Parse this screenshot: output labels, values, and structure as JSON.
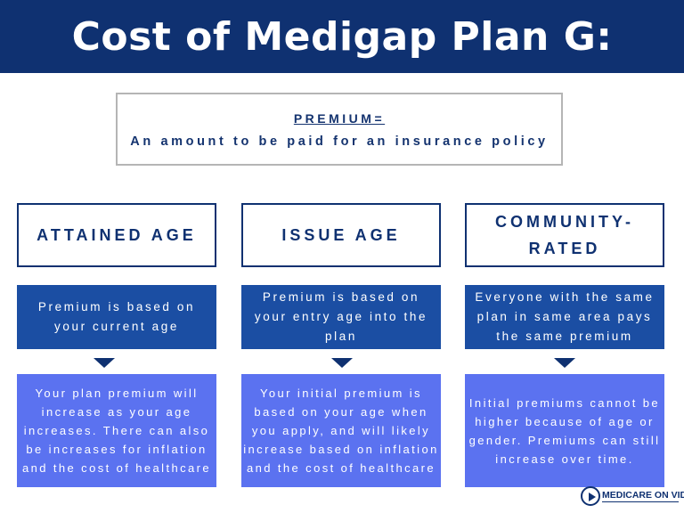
{
  "title": "Cost of Medigap Plan G:",
  "definition": {
    "term": "PREMIUM=",
    "text": "An amount to be paid for an insurance policy"
  },
  "columns": [
    {
      "title": "ATTAINED AGE",
      "summary": "Premium is based on your current age",
      "detail": "Your plan premium will increase as your age increases. There can also be increases for inflation and the cost of healthcare"
    },
    {
      "title": "ISSUE AGE",
      "summary": "Premium is based on your entry age into the plan",
      "detail": "Your initial premium is based on your age when you apply, and will likely increase based on inflation and the cost of healthcare"
    },
    {
      "title": "COMMUNITY-RATED",
      "summary": "Everyone with the same plan in same area pays the same premium",
      "detail": "Initial premiums cannot be higher because of age or gender. Premiums can still increase over time."
    }
  ],
  "logo": {
    "text": "MEDICARE ON VIDEO"
  },
  "colors": {
    "header": "#0f3171",
    "summary_box": "#1b4ea3",
    "detail_box": "#5b72f0",
    "definition_text": "#14336f"
  }
}
